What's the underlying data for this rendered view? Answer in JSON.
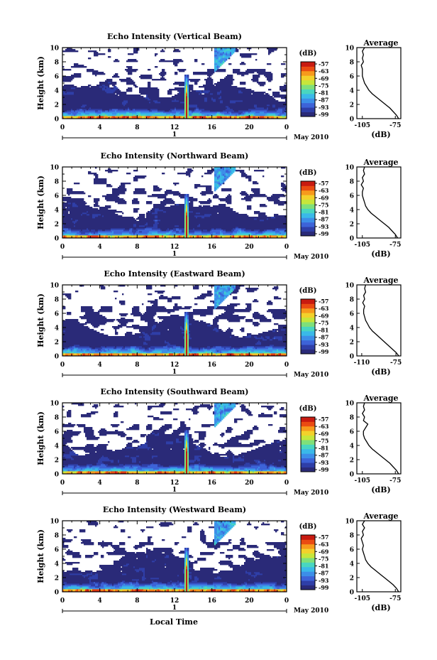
{
  "figure": {
    "common_xlabel": "Local Time",
    "date_label": "May 2010",
    "day_label": "1",
    "ylabel": "Height (km)",
    "avg_title": "Average",
    "avg_xlabel": "(dB)",
    "cbar_unit": "(dB)"
  },
  "colormap": [
    "#2a2a78",
    "#2f3fa8",
    "#3d63d8",
    "#3d8fe8",
    "#3ab9e8",
    "#49d6c0",
    "#7fe07a",
    "#c7e63b",
    "#f3d12b",
    "#f79a1c",
    "#ea4b12",
    "#c81a10"
  ],
  "chart_data": [
    {
      "type": "heatmap",
      "title": "Echo Intensity (Vertical Beam)",
      "xlabel": "Local Time",
      "ylabel": "Height (km)",
      "x_ticks": [
        "0",
        "4",
        "8",
        "12",
        "16",
        "20",
        "0"
      ],
      "y_ticks": [
        "0",
        "2",
        "4",
        "6",
        "8",
        "10"
      ],
      "xlim": [
        0,
        24
      ],
      "ylim": [
        0,
        10
      ],
      "colorbar_ticks": [
        "-57",
        "-63",
        "-69",
        "-75",
        "-81",
        "-87",
        "-93",
        "-99"
      ],
      "colorbar_range": [
        -99,
        -57
      ],
      "average_profile": {
        "x_ticks": [
          "-105",
          "-75"
        ],
        "xlim": [
          -110,
          -70
        ],
        "height_km": [
          0,
          0.5,
          1,
          1.5,
          2,
          2.5,
          3,
          3.5,
          4,
          4.5,
          5,
          5.5,
          6,
          6.5,
          7,
          7.5,
          8,
          8.5,
          9,
          9.5,
          10
        ],
        "db": [
          -72,
          -74,
          -77,
          -80,
          -84,
          -88,
          -92,
          -96,
          -99,
          -101,
          -103,
          -104,
          -105,
          -105,
          -105,
          -106,
          -104,
          -105,
          -104,
          -105,
          -103
        ]
      }
    },
    {
      "type": "heatmap",
      "title": "Echo Intensity (Northward Beam)",
      "xlabel": "Local Time",
      "ylabel": "Height (km)",
      "x_ticks": [
        "0",
        "4",
        "8",
        "12",
        "16",
        "20",
        "0"
      ],
      "y_ticks": [
        "0",
        "2",
        "4",
        "6",
        "8",
        "10"
      ],
      "xlim": [
        0,
        24
      ],
      "ylim": [
        0,
        10
      ],
      "colorbar_ticks": [
        "-57",
        "-63",
        "-69",
        "-75",
        "-81",
        "-87",
        "-93",
        "-99"
      ],
      "colorbar_range": [
        -99,
        -57
      ],
      "average_profile": {
        "x_ticks": [
          "-105",
          "-75"
        ],
        "xlim": [
          -110,
          -70
        ],
        "height_km": [
          0,
          0.5,
          1,
          1.5,
          2,
          2.5,
          3,
          3.5,
          4,
          4.5,
          5,
          5.5,
          6,
          6.5,
          7,
          7.5,
          8,
          8.5,
          9,
          9.5,
          10
        ],
        "db": [
          -73,
          -75,
          -78,
          -81,
          -85,
          -89,
          -93,
          -97,
          -100,
          -102,
          -103,
          -104,
          -105,
          -105,
          -104,
          -106,
          -104,
          -105,
          -103,
          -104,
          -103
        ]
      }
    },
    {
      "type": "heatmap",
      "title": "Echo Intensity (Eastward Beam)",
      "xlabel": "Local Time",
      "ylabel": "Height (km)",
      "x_ticks": [
        "0",
        "4",
        "8",
        "12",
        "16",
        "20",
        "0"
      ],
      "y_ticks": [
        "0",
        "2",
        "4",
        "6",
        "8",
        "10"
      ],
      "xlim": [
        0,
        24
      ],
      "ylim": [
        0,
        10
      ],
      "colorbar_ticks": [
        "-57",
        "-63",
        "-69",
        "-75",
        "-81",
        "-87",
        "-93",
        "-99"
      ],
      "colorbar_range": [
        -99,
        -57
      ],
      "average_profile": {
        "x_ticks": [
          "-110",
          "-75"
        ],
        "xlim": [
          -115,
          -70
        ],
        "height_km": [
          0,
          0.5,
          1,
          1.5,
          2,
          2.5,
          3,
          3.5,
          4,
          4.5,
          5,
          5.5,
          6,
          6.5,
          7,
          7.5,
          8,
          8.5,
          9,
          9.5,
          10
        ],
        "db": [
          -72,
          -75,
          -79,
          -83,
          -87,
          -91,
          -95,
          -99,
          -102,
          -104,
          -106,
          -107,
          -108,
          -108,
          -107,
          -109,
          -107,
          -108,
          -106,
          -107,
          -106
        ]
      }
    },
    {
      "type": "heatmap",
      "title": "Echo Intensity (Southward Beam)",
      "xlabel": "Local Time",
      "ylabel": "Height (km)",
      "x_ticks": [
        "0",
        "4",
        "8",
        "12",
        "16",
        "20",
        "0"
      ],
      "y_ticks": [
        "0",
        "2",
        "4",
        "6",
        "8",
        "10"
      ],
      "xlim": [
        0,
        24
      ],
      "ylim": [
        0,
        10
      ],
      "colorbar_ticks": [
        "-57",
        "-63",
        "-69",
        "-75",
        "-81",
        "-87",
        "-93",
        "-99"
      ],
      "colorbar_range": [
        -99,
        -57
      ],
      "average_profile": {
        "x_ticks": [
          "-105",
          "-75"
        ],
        "xlim": [
          -110,
          -70
        ],
        "height_km": [
          0,
          0.5,
          1,
          1.5,
          2,
          2.5,
          3,
          3.5,
          4,
          4.5,
          5,
          5.5,
          6,
          6.5,
          7,
          7.5,
          8,
          8.5,
          9,
          9.5,
          10
        ],
        "db": [
          -72,
          -74,
          -77,
          -80,
          -84,
          -88,
          -92,
          -96,
          -99,
          -101,
          -103,
          -104,
          -104,
          -102,
          -100,
          -104,
          -103,
          -105,
          -103,
          -104,
          -103
        ]
      }
    },
    {
      "type": "heatmap",
      "title": "Echo Intensity (Westward Beam)",
      "xlabel": "Local Time",
      "ylabel": "Height (km)",
      "x_ticks": [
        "0",
        "4",
        "8",
        "12",
        "16",
        "20",
        "0"
      ],
      "y_ticks": [
        "0",
        "2",
        "4",
        "6",
        "8",
        "10"
      ],
      "xlim": [
        0,
        24
      ],
      "ylim": [
        0,
        10
      ],
      "colorbar_ticks": [
        "-57",
        "-63",
        "-69",
        "-75",
        "-81",
        "-87",
        "-93",
        "-99"
      ],
      "colorbar_range": [
        -99,
        -57
      ],
      "average_profile": {
        "x_ticks": [
          "-105",
          "-75"
        ],
        "xlim": [
          -110,
          -70
        ],
        "height_km": [
          0,
          0.5,
          1,
          1.5,
          2,
          2.5,
          3,
          3.5,
          4,
          4.5,
          5,
          5.5,
          6,
          6.5,
          7,
          7.5,
          8,
          8.5,
          9,
          9.5,
          10
        ],
        "db": [
          -72,
          -74,
          -77,
          -81,
          -85,
          -89,
          -93,
          -97,
          -100,
          -102,
          -103,
          -104,
          -105,
          -104,
          -105,
          -106,
          -104,
          -105,
          -103,
          -105,
          -103
        ]
      }
    }
  ]
}
